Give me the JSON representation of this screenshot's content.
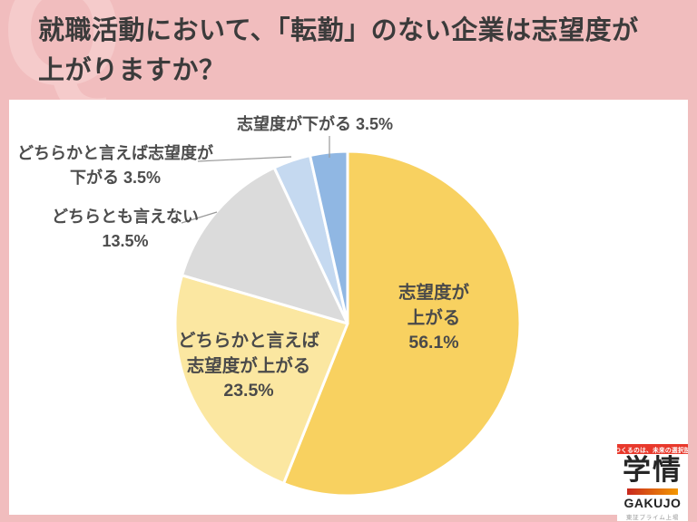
{
  "page": {
    "watermark": "Q",
    "bg_color": "#F1BDBE",
    "title_line1": "就職活動において、「転勤」のない企業は志望度が",
    "title_line2": "上がりますか？"
  },
  "chart_data": {
    "type": "pie",
    "title": "就職活動において、「転勤」のない企業は志望度が上がりますか？",
    "start_angle_deg": 0,
    "direction": "clockwise",
    "slice_border_color": "#FFFFFF",
    "label_color": "#4A4A4A",
    "leader_line_color": "#9A9A9A",
    "slices": [
      {
        "label": "志望度が上がる",
        "value_pct": 56.1,
        "color": "#F8D160",
        "label_placement": "inside",
        "display": [
          "志望度が",
          "上がる",
          "56.1%"
        ]
      },
      {
        "label": "どちらかと言えば志望度が上がる",
        "value_pct": 23.5,
        "color": "#FBE7A1",
        "label_placement": "inside",
        "display": [
          "どちらかと言えば",
          "志望度が上がる",
          "23.5%"
        ]
      },
      {
        "label": "どちらとも言えない",
        "value_pct": 13.5,
        "color": "#DBDBDB",
        "label_placement": "outside",
        "display": [
          "どちらとも言えない",
          "13.5%"
        ]
      },
      {
        "label": "どちらかと言えば志望度が下がる",
        "value_pct": 3.5,
        "color": "#C5D9F0",
        "label_placement": "outside",
        "display": [
          "どちらかと言えば志望度が",
          "下がる 3.5%"
        ]
      },
      {
        "label": "志望度が下がる",
        "value_pct": 3.5,
        "color": "#90B7E3",
        "label_placement": "outside",
        "display": [
          "志望度が下がる 3.5%"
        ]
      }
    ]
  },
  "logo": {
    "tagline": "つくるのは、未来の選択肢",
    "name_jp": "学情",
    "name_en": "GAKUJO",
    "listing": "東証プライム上場",
    "banner_color": "#E8392C",
    "bar_gradient_start": "#C8281E",
    "bar_gradient_end": "#F39800"
  }
}
